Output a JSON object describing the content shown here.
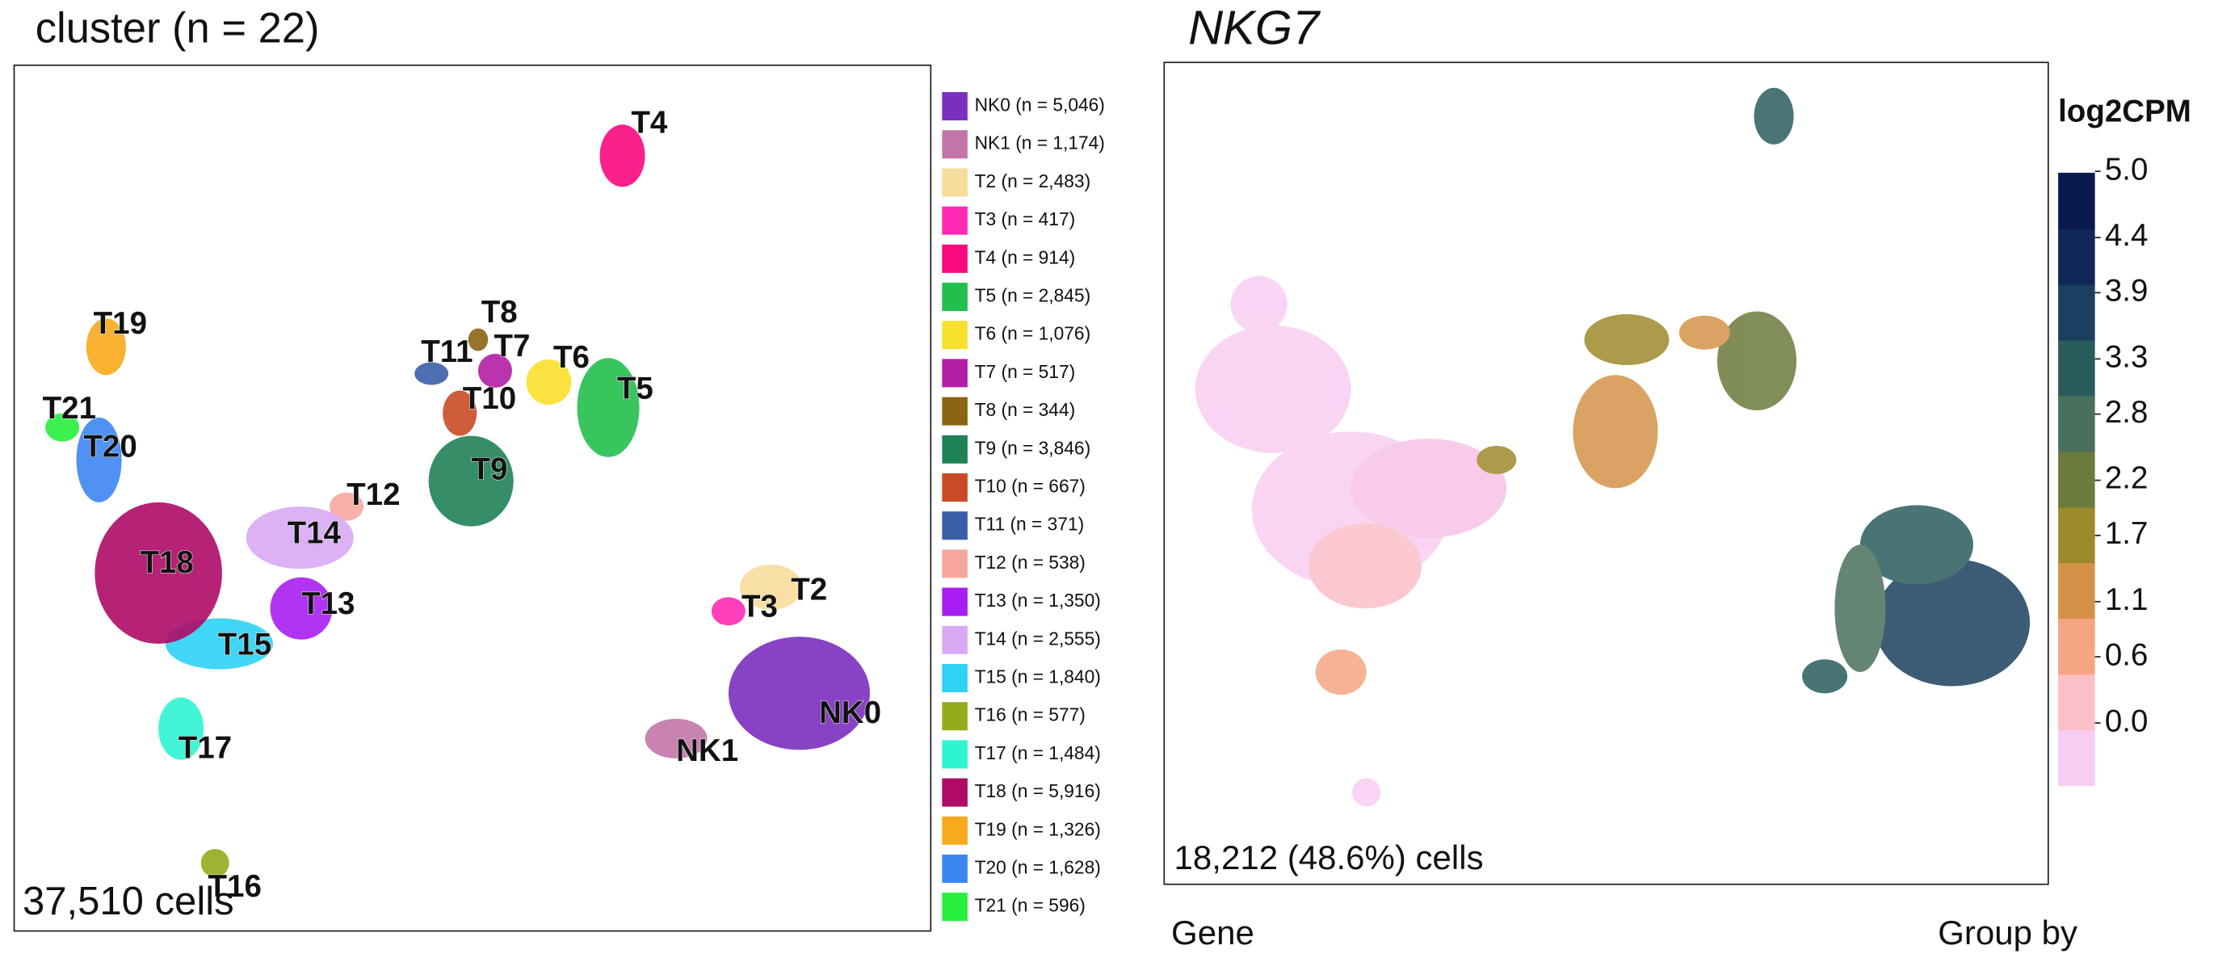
{
  "left_panel": {
    "title": "cluster (n = 22)",
    "cell_count": "37,510 cells",
    "cluster_labels": [
      "NK0",
      "NK1",
      "T2",
      "T3",
      "T4",
      "T5",
      "T6",
      "T7",
      "T8",
      "T9",
      "T10",
      "T11",
      "T12",
      "T13",
      "T14",
      "T15",
      "T16",
      "T17",
      "T18",
      "T19",
      "T20",
      "T21"
    ],
    "legend": [
      {
        "label": "NK0 (n = 5,046)",
        "color": "#7b2fbf"
      },
      {
        "label": "NK1 (n = 1,174)",
        "color": "#c276a8"
      },
      {
        "label": "T2 (n = 2,483)",
        "color": "#f6dc9c"
      },
      {
        "label": "T3 (n = 417)",
        "color": "#ff2ab4"
      },
      {
        "label": "T4 (n = 914)",
        "color": "#f8097e"
      },
      {
        "label": "T5 (n = 2,845)",
        "color": "#22bf4c"
      },
      {
        "label": "T6 (n = 1,076)",
        "color": "#f9e02b"
      },
      {
        "label": "T7 (n = 517)",
        "color": "#b31ea5"
      },
      {
        "label": "T8 (n = 344)",
        "color": "#8c6414"
      },
      {
        "label": "T9 (n = 3,846)",
        "color": "#1f8257"
      },
      {
        "label": "T10 (n = 667)",
        "color": "#c94b26"
      },
      {
        "label": "T11 (n = 371)",
        "color": "#3a5ea8"
      },
      {
        "label": "T12 (n = 538)",
        "color": "#f7a79e"
      },
      {
        "label": "T13 (n = 1,350)",
        "color": "#a81ef2"
      },
      {
        "label": "T14 (n = 2,555)",
        "color": "#d9a8f4"
      },
      {
        "label": "T15 (n = 1,840)",
        "color": "#2dd2f5"
      },
      {
        "label": "T16 (n = 577)",
        "color": "#93ab1c"
      },
      {
        "label": "T17 (n = 1,484)",
        "color": "#2ef4d2"
      },
      {
        "label": "T18 (n = 5,916)",
        "color": "#ae0a66"
      },
      {
        "label": "T19 (n = 1,326)",
        "color": "#f8a91c"
      },
      {
        "label": "T20 (n = 1,628)",
        "color": "#3c86f2"
      },
      {
        "label": "T21 (n = 596)",
        "color": "#27f03c"
      }
    ]
  },
  "right_panel": {
    "title": "NKG7",
    "cell_count": "18,212 (48.6%) cells",
    "colorbar": {
      "title": "log2CPM",
      "colors": [
        "#f8cdf2",
        "#fbbfc8",
        "#f6a582",
        "#d49248",
        "#9d8a2b",
        "#6c7a3c",
        "#49705c",
        "#2a5c5e",
        "#1b3f5e",
        "#0f2858",
        "#0a1a4f"
      ],
      "ticks": [
        {
          "value": 5,
          "label": "5.0"
        },
        4.4,
        3.9,
        3.3,
        2.8,
        2.2,
        1.7,
        1.1,
        0.6,
        {
          "value": 0,
          "label": "0.0"
        }
      ]
    }
  },
  "footer": {
    "gene_label": "Gene",
    "group_label": "Group by"
  }
}
